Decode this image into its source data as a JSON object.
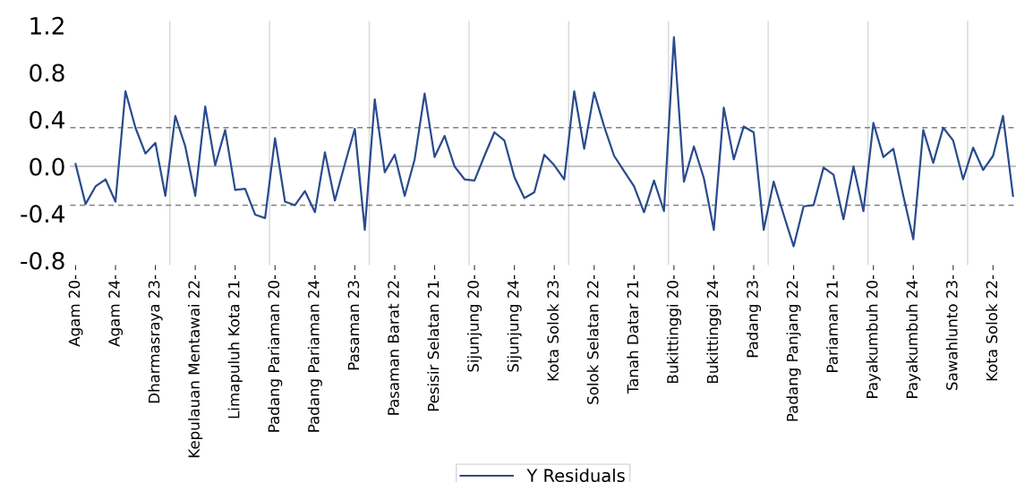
{
  "chart_data": {
    "type": "line",
    "categories": [
      "Agam 20-",
      null,
      null,
      null,
      "Agam 24-",
      null,
      null,
      null,
      "Dharmasraya 23-",
      null,
      null,
      null,
      "Kepulauan Mentawai 22-",
      null,
      null,
      null,
      "Limapuluh Kota 21-",
      null,
      null,
      null,
      "Padang Pariaman 20-",
      null,
      null,
      null,
      "Padang Pariaman 24-",
      null,
      null,
      null,
      "Pasaman 23-",
      null,
      null,
      null,
      "Pasaman Barat 22-",
      null,
      null,
      null,
      "Pesisir Selatan 21-",
      null,
      null,
      null,
      "Sijunjung 20-",
      null,
      null,
      null,
      "Sijunjung 24-",
      null,
      null,
      null,
      "Kota Solok 23-",
      null,
      null,
      null,
      "Solok Selatan 22-",
      null,
      null,
      null,
      "Tanah Datar 21-",
      null,
      null,
      null,
      "Bukittinggi 20-",
      null,
      null,
      null,
      "Bukittinggi 24-",
      null,
      null,
      null,
      "Padang 23-",
      null,
      null,
      null,
      "Padang Panjang 22-",
      null,
      null,
      null,
      "Pariaman 21-",
      null,
      null,
      null,
      "Payakumbuh 20-",
      null,
      null,
      null,
      "Payakumbuh 24-",
      null,
      null,
      null,
      "Sawahlunto 23-",
      null,
      null,
      null,
      "Kota Solok 22-",
      null,
      null
    ],
    "series": [
      {
        "name": "Y Residuals",
        "color": "#2a4b8d",
        "values": [
          0.02,
          -0.32,
          -0.17,
          -0.11,
          -0.3,
          0.64,
          0.33,
          0.11,
          0.2,
          -0.25,
          0.43,
          0.17,
          -0.25,
          0.51,
          0.01,
          0.31,
          -0.2,
          -0.19,
          -0.41,
          -0.44,
          0.24,
          -0.3,
          -0.33,
          -0.21,
          -0.39,
          0.12,
          -0.29,
          0.02,
          0.32,
          -0.54,
          0.57,
          -0.05,
          0.1,
          -0.25,
          0.06,
          0.62,
          0.08,
          0.26,
          0.0,
          -0.11,
          -0.12,
          0.09,
          0.29,
          0.22,
          -0.09,
          -0.27,
          -0.22,
          0.1,
          0.01,
          -0.11,
          0.64,
          0.15,
          0.63,
          0.34,
          0.09,
          -0.04,
          -0.17,
          -0.39,
          -0.12,
          -0.38,
          1.1,
          -0.13,
          0.17,
          -0.1,
          -0.54,
          0.5,
          0.06,
          0.34,
          0.29,
          -0.54,
          -0.13,
          -0.41,
          -0.68,
          -0.34,
          -0.33,
          -0.01,
          -0.07,
          -0.45,
          0.0,
          -0.38,
          0.37,
          0.08,
          0.15,
          -0.25,
          -0.62,
          0.31,
          0.03,
          0.33,
          0.22,
          -0.11,
          0.16,
          -0.03,
          0.09,
          0.43,
          -0.25
        ]
      }
    ],
    "ylim": [
      -0.84,
      1.24
    ],
    "yticks": [
      {
        "value": 1.2,
        "label": "1.2"
      },
      {
        "value": 0.8,
        "label": "0.8"
      },
      {
        "value": 0.4,
        "label": "0.4"
      },
      {
        "value": 0.0,
        "label": "0.0"
      },
      {
        "value": -0.4,
        "label": "-0.4"
      },
      {
        "value": -0.8,
        "label": "-0.8"
      }
    ],
    "ref_lines": [
      {
        "axis": "y",
        "value": 0,
        "color": "#b0b0b0",
        "line_style": "solid"
      },
      {
        "axis": "y",
        "value": 0.33,
        "color": "#808080",
        "line_style": "dashed"
      },
      {
        "axis": "y",
        "value": -0.33,
        "color": "#808080",
        "line_style": "dashed"
      }
    ],
    "grid": "x",
    "legend": "bottom",
    "marker": "none",
    "line_style": "solid"
  }
}
